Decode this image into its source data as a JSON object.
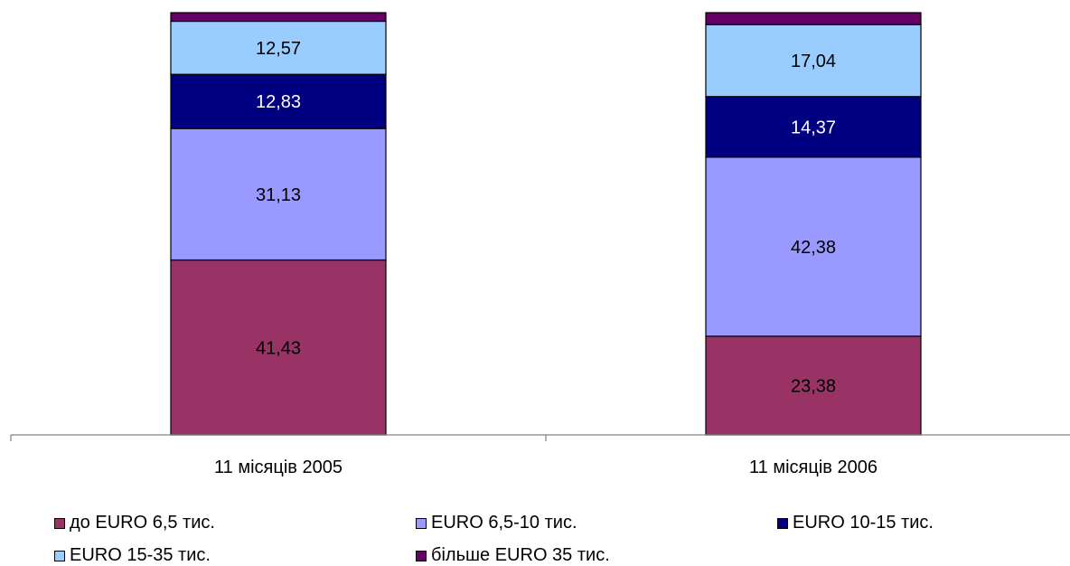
{
  "chart_data": {
    "type": "bar",
    "stacked": true,
    "categories": [
      "11 місяців 2005",
      "11 місяців 2006"
    ],
    "series": [
      {
        "name": "до EURO 6,5 тис.",
        "values": [
          41.43,
          23.38
        ],
        "labels": [
          "41,43",
          "23,38"
        ],
        "color": "#993366"
      },
      {
        "name": "EURO 6,5-10 тис.",
        "values": [
          31.13,
          42.38
        ],
        "labels": [
          "31,13",
          "42,38"
        ],
        "color": "#9999FF"
      },
      {
        "name": "EURO 10-15 тис.",
        "values": [
          12.83,
          14.37
        ],
        "labels": [
          "12,83",
          "14,37"
        ],
        "color": "#000080"
      },
      {
        "name": "EURO 15-35 тис.",
        "values": [
          12.57,
          17.04
        ],
        "labels": [
          "12,57",
          "17,04"
        ],
        "color": "#99CCFF"
      },
      {
        "name": "більше EURO 35 тис.",
        "values": [
          2.04,
          2.83
        ],
        "labels": [
          "",
          ""
        ],
        "color": "#660066"
      }
    ],
    "label_colors": [
      "#000000",
      "#000000",
      "#ffffff",
      "#000000",
      "#ffffff"
    ],
    "ylim": [
      0,
      100
    ],
    "grid": false,
    "legend_position": "bottom"
  }
}
